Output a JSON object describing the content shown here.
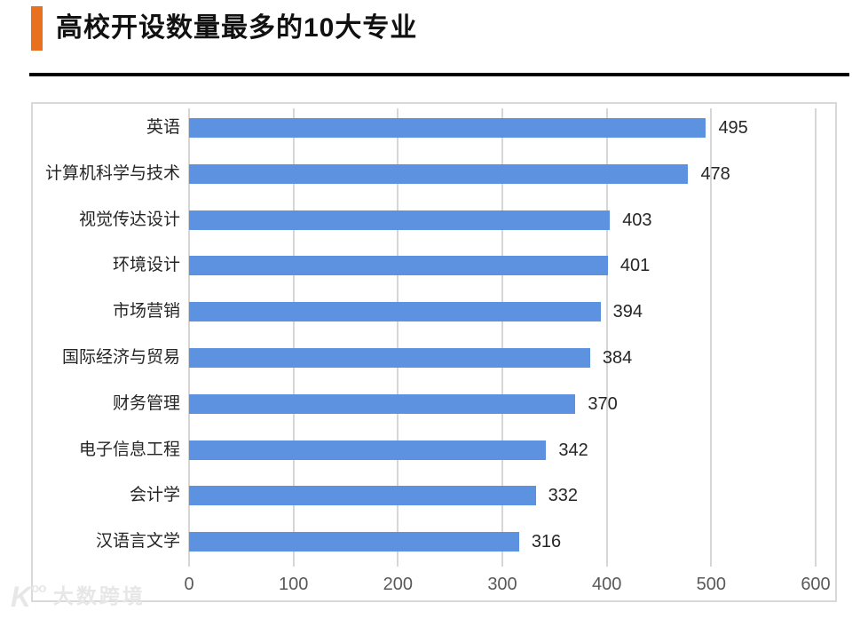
{
  "page": {
    "title": "高校开设数量最多的10大专业",
    "accent_color": "#e8701f",
    "divider_color": "#000000"
  },
  "chart_data": {
    "type": "bar",
    "orientation": "horizontal",
    "title": "高校开设数量最多的10大专业",
    "categories": [
      "英语",
      "计算机科学与技术",
      "视觉传达设计",
      "环境设计",
      "市场营销",
      "国际经济与贸易",
      "财务管理",
      "电子信息工程",
      "会计学",
      "汉语言文学"
    ],
    "values": [
      495,
      478,
      403,
      401,
      394,
      384,
      370,
      342,
      332,
      316
    ],
    "xlabel": "",
    "ylabel": "",
    "xlim": [
      0,
      600
    ],
    "x_ticks": [
      0,
      100,
      200,
      300,
      400,
      500,
      600
    ],
    "grid": true,
    "legend": "none",
    "value_labels": true,
    "bar_color": "#5c92e0",
    "gridline_color": "#d6d6d6",
    "tick_label_color": "#595959",
    "label_color": "#262626"
  },
  "watermark": {
    "logo_main": "K",
    "logo_sup": "oo",
    "text": "大数跨境"
  }
}
